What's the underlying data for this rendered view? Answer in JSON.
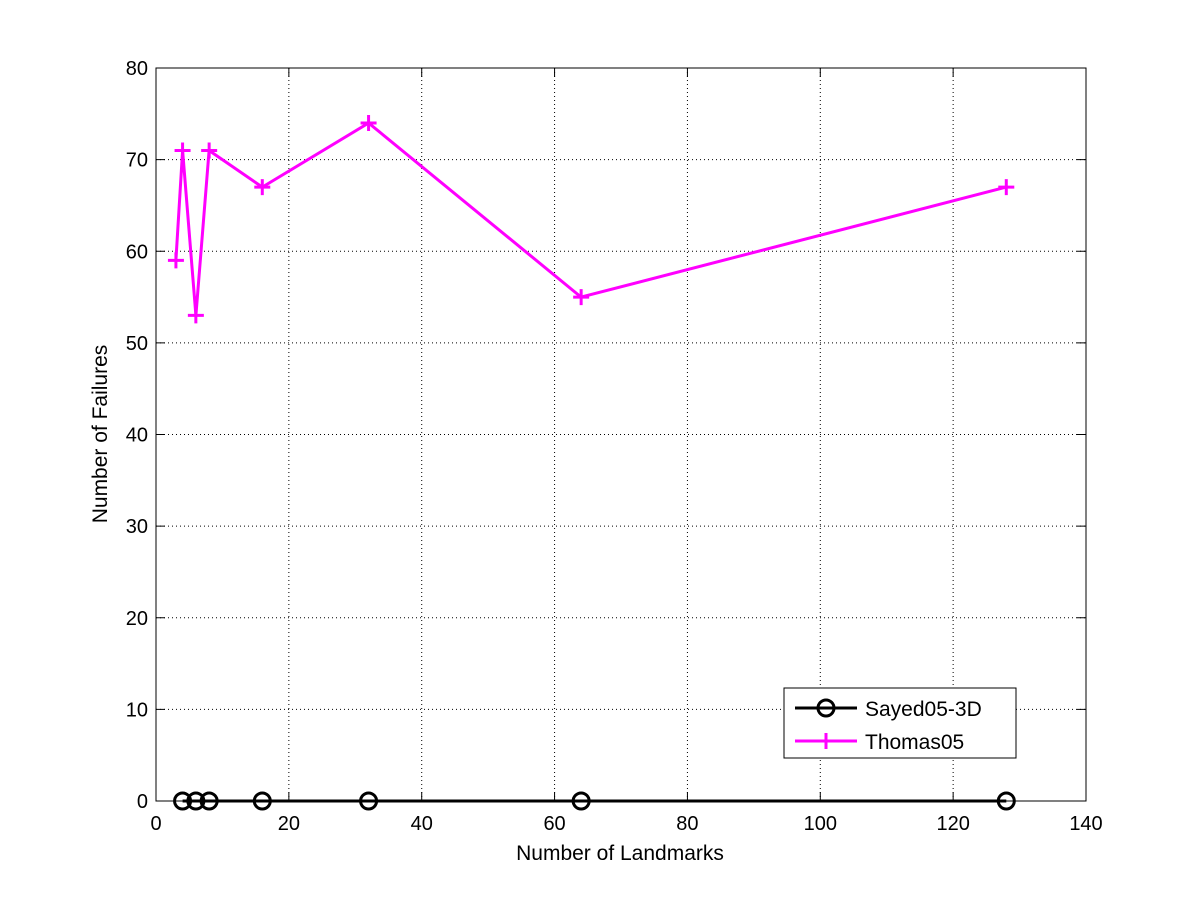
{
  "chart_data": {
    "type": "line",
    "title": "",
    "xlabel": "Number of Landmarks",
    "ylabel": "Number of Failures",
    "xlim": [
      0,
      140
    ],
    "ylim": [
      0,
      80
    ],
    "xticks": [
      0,
      20,
      40,
      60,
      80,
      100,
      120,
      140
    ],
    "yticks": [
      0,
      10,
      20,
      30,
      40,
      50,
      60,
      70,
      80
    ],
    "grid": true,
    "legend_position": "bottom-right",
    "series": [
      {
        "name": "Sayed05-3D",
        "color": "#000000",
        "marker": "circle",
        "x": [
          4,
          6,
          8,
          16,
          32,
          64,
          128
        ],
        "y": [
          0,
          0,
          0,
          0,
          0,
          0,
          0
        ]
      },
      {
        "name": "Thomas05",
        "color": "#ff00ff",
        "marker": "plus",
        "x": [
          3,
          4,
          6,
          8,
          16,
          32,
          64,
          128
        ],
        "y": [
          59,
          71,
          53,
          71,
          67,
          74,
          55,
          67
        ]
      }
    ]
  }
}
